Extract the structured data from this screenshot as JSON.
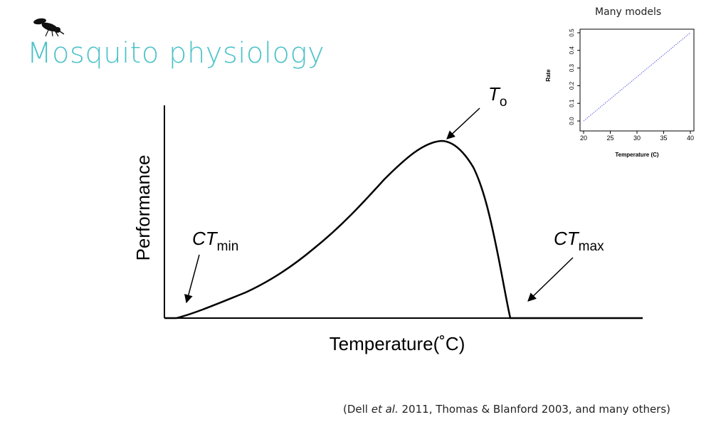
{
  "title": "Mosquito physiology",
  "icons": {
    "logo": "mosquito-icon"
  },
  "citation": {
    "before": "(Dell ",
    "italic": "et al.",
    "after": " 2011, Thomas & Blanford 2003, and many others)"
  },
  "diagram": {
    "xlabel": "Temperature(˚C)",
    "ylabel": "Performance",
    "labels": {
      "ctmin": {
        "main": "CT",
        "sub": "min"
      },
      "ctmax": {
        "main": "CT",
        "sub": "max"
      },
      "topt": {
        "main": "T",
        "sub": "o"
      }
    }
  },
  "chart_data": {
    "type": "line",
    "title": "Many models",
    "xlabel": "Temperature (C)",
    "ylabel": "Rate",
    "xlim": [
      20,
      40
    ],
    "ylim": [
      0,
      0.5
    ],
    "x_ticks": [
      "20",
      "25",
      "30",
      "35",
      "40"
    ],
    "y_ticks": [
      "0.0",
      "0.1",
      "0.2",
      "0.3",
      "0.4",
      "0.5"
    ],
    "series": [
      {
        "x": [
          20,
          40
        ],
        "y": [
          0,
          0.5
        ],
        "color": "#3b3bd9"
      }
    ]
  }
}
